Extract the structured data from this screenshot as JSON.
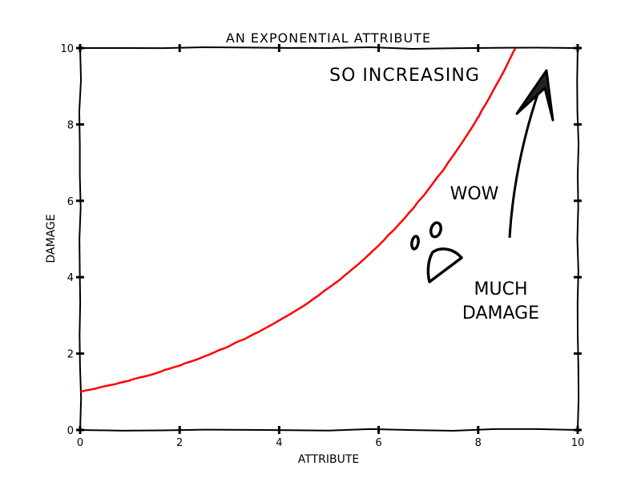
{
  "chart_data": {
    "type": "line",
    "style": "xkcd",
    "title": "AN EXPONENTIAL ATTRIBUTE",
    "xlabel": "ATTRIBUTE",
    "ylabel": "DAMAGE",
    "xlim": [
      0,
      10
    ],
    "ylim": [
      0,
      10
    ],
    "xticks": [
      "0",
      "2",
      "4",
      "6",
      "8",
      "10"
    ],
    "yticks": [
      "0",
      "2",
      "4",
      "6",
      "8",
      "10"
    ],
    "grid": false,
    "series": [
      {
        "color": "#ff0000",
        "x": [
          0,
          1,
          2,
          3,
          4,
          5,
          6,
          7,
          8,
          8.75
        ],
        "y": [
          1.0,
          1.3,
          1.69,
          2.2,
          2.86,
          3.72,
          4.84,
          6.3,
          8.19,
          10.0
        ]
      }
    ],
    "annotations": [
      {
        "text": "SO INCREASING"
      },
      {
        "text": "WOW"
      },
      {
        "text": "MUCH"
      },
      {
        "text": "DAMAGE"
      }
    ]
  }
}
